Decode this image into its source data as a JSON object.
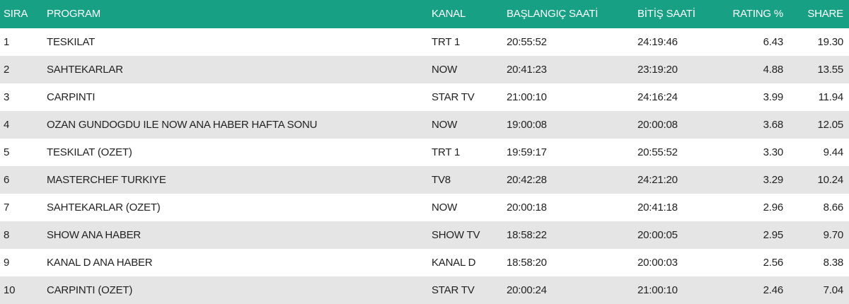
{
  "table": {
    "header": [
      "SIRA",
      "PROGRAM",
      "KANAL",
      "BAŞLANGIÇ SAATİ",
      "BİTİŞ SAATİ",
      "RATING %",
      "SHARE"
    ],
    "rows": [
      [
        "1",
        "TESKILAT",
        "TRT 1",
        "20:55:52",
        "24:19:46",
        "6.43",
        "19.30"
      ],
      [
        "2",
        "SAHTEKARLAR",
        "NOW",
        "20:41:23",
        "23:19:20",
        "4.88",
        "13.55"
      ],
      [
        "3",
        "CARPINTI",
        "STAR TV",
        "21:00:10",
        "24:16:24",
        "3.99",
        "11.94"
      ],
      [
        "4",
        "OZAN GUNDOGDU ILE NOW ANA HABER HAFTA SONU",
        "NOW",
        "19:00:08",
        "20:00:08",
        "3.68",
        "12.05"
      ],
      [
        "5",
        "TESKILAT (OZET)",
        "TRT 1",
        "19:59:17",
        "20:55:52",
        "3.30",
        "9.44"
      ],
      [
        "6",
        "MASTERCHEF TURKIYE",
        "TV8",
        "20:42:28",
        "24:21:20",
        "3.29",
        "10.24"
      ],
      [
        "7",
        "SAHTEKARLAR (OZET)",
        "NOW",
        "20:00:18",
        "20:41:18",
        "2.96",
        "8.66"
      ],
      [
        "8",
        "SHOW ANA HABER",
        "SHOW TV",
        "18:58:22",
        "20:00:05",
        "2.95",
        "9.70"
      ],
      [
        "9",
        "KANAL D ANA HABER",
        "KANAL D",
        "18:58:20",
        "20:00:03",
        "2.56",
        "8.38"
      ],
      [
        "10",
        "CARPINTI (OZET)",
        "STAR TV",
        "20:00:24",
        "21:00:10",
        "2.46",
        "7.04"
      ]
    ]
  }
}
